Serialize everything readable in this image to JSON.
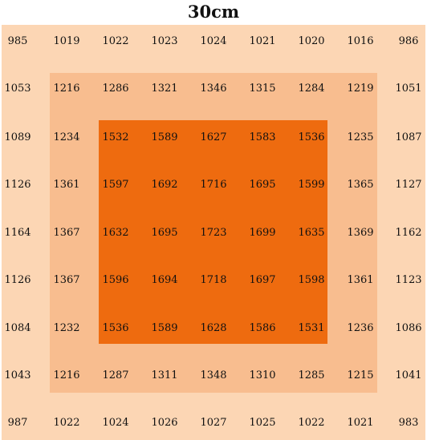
{
  "title": "30cm",
  "colors": {
    "outer": "#fcd6b4",
    "middle": "#f8bd8f",
    "inner": "#ee6b0f",
    "background": "#ffffff",
    "text": "#111111"
  },
  "grid": {
    "rows": [
      [
        "985",
        "1019",
        "1022",
        "1023",
        "1024",
        "1021",
        "1020",
        "1016",
        "986"
      ],
      [
        "1053",
        "1216",
        "1286",
        "1321",
        "1346",
        "1315",
        "1284",
        "1219",
        "1051"
      ],
      [
        "1089",
        "1234",
        "1532",
        "1589",
        "1627",
        "1583",
        "1536",
        "1235",
        "1087"
      ],
      [
        "1126",
        "1361",
        "1597",
        "1692",
        "1716",
        "1695",
        "1599",
        "1365",
        "1127"
      ],
      [
        "1164",
        "1367",
        "1632",
        "1695",
        "1723",
        "1699",
        "1635",
        "1369",
        "1162"
      ],
      [
        "1126",
        "1367",
        "1596",
        "1694",
        "1718",
        "1697",
        "1598",
        "1361",
        "1123"
      ],
      [
        "1084",
        "1232",
        "1536",
        "1589",
        "1628",
        "1586",
        "1531",
        "1236",
        "1086"
      ],
      [
        "1043",
        "1216",
        "1287",
        "1311",
        "1348",
        "1310",
        "1285",
        "1215",
        "1041"
      ],
      [
        "987",
        "1022",
        "1024",
        "1026",
        "1027",
        "1025",
        "1022",
        "1021",
        "983"
      ]
    ]
  }
}
